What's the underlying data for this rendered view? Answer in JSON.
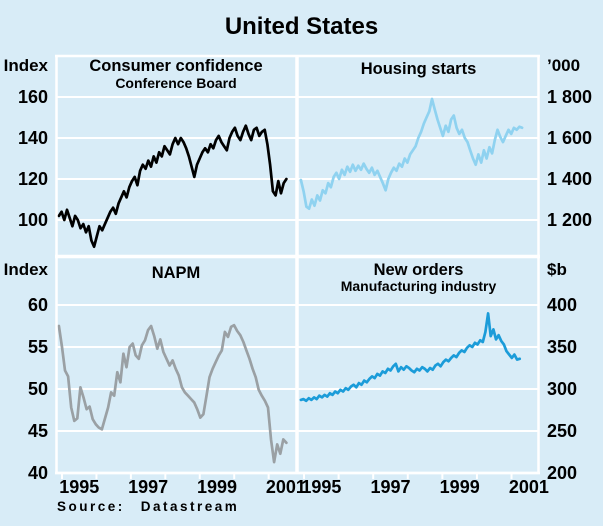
{
  "title": "United States",
  "source": {
    "label": "Source:",
    "value": "Datastream"
  },
  "x_tick_years": [
    "1995",
    "1997",
    "1999",
    "2001"
  ],
  "colors": {
    "background": "#d8ecf7",
    "grid_and_frame": "#ffffff",
    "text": "#000000"
  },
  "chart_data": [
    {
      "type": "line",
      "title": "Consumer confidence",
      "subtitle": "Conference Board",
      "unit_label": "Index",
      "axis_side": "left",
      "color": "#000000",
      "ylim": [
        83,
        180
      ],
      "x_range": [
        "late 1994",
        "early 2001"
      ],
      "x_tick_labels": [
        "1995",
        "1997",
        "1999",
        "2001"
      ],
      "yticks": [
        {
          "label": "160",
          "value": 160
        },
        {
          "label": "140",
          "value": 140
        },
        {
          "label": "120",
          "value": 120
        },
        {
          "label": "100",
          "value": 100
        }
      ],
      "values": [
        102,
        104,
        100,
        105,
        101,
        97,
        102,
        100,
        96,
        98,
        94,
        97,
        90,
        87,
        92,
        97,
        95,
        98,
        101,
        104,
        106,
        103,
        108,
        111,
        114,
        111,
        116,
        119,
        121,
        117,
        124,
        127,
        125,
        129,
        126,
        131,
        128,
        133,
        131,
        136,
        134,
        132,
        137,
        140,
        137,
        140,
        138,
        135,
        131,
        126,
        121,
        127,
        130,
        133,
        135,
        133,
        137,
        135,
        139,
        141,
        138,
        136,
        134,
        140,
        143,
        145,
        141,
        139,
        143,
        146,
        142,
        139,
        144,
        145,
        141,
        143,
        144,
        137,
        127,
        114,
        112,
        119,
        113,
        118,
        120
      ]
    },
    {
      "type": "line",
      "title": "Housing starts",
      "subtitle": "",
      "unit_label": "’000",
      "axis_side": "right",
      "color": "#8fd2f0",
      "ylim": [
        1030,
        2005
      ],
      "x_range": [
        "late 1994",
        "early 2001"
      ],
      "x_tick_labels": [
        "1995",
        "1997",
        "1999",
        "2001"
      ],
      "yticks": [
        {
          "label": "1 800",
          "value": 1800
        },
        {
          "label": "1 600",
          "value": 1600
        },
        {
          "label": "1 400",
          "value": 1400
        },
        {
          "label": "1 200",
          "value": 1200
        }
      ],
      "values": [
        1395,
        1340,
        1265,
        1255,
        1300,
        1270,
        1320,
        1295,
        1345,
        1330,
        1380,
        1360,
        1410,
        1430,
        1400,
        1445,
        1420,
        1460,
        1435,
        1470,
        1440,
        1465,
        1445,
        1475,
        1450,
        1430,
        1455,
        1420,
        1440,
        1410,
        1380,
        1345,
        1400,
        1430,
        1455,
        1440,
        1475,
        1460,
        1500,
        1480,
        1520,
        1540,
        1560,
        1600,
        1630,
        1670,
        1700,
        1730,
        1790,
        1740,
        1690,
        1650,
        1610,
        1660,
        1630,
        1690,
        1710,
        1650,
        1620,
        1640,
        1600,
        1580,
        1540,
        1500,
        1470,
        1520,
        1480,
        1540,
        1500,
        1555,
        1525,
        1590,
        1640,
        1605,
        1580,
        1610,
        1640,
        1620,
        1650,
        1640,
        1655,
        1650
      ]
    },
    {
      "type": "line",
      "title": "NAPM",
      "subtitle": "",
      "unit_label": "Index",
      "axis_side": "left",
      "color": "#9aa0a4",
      "ylim": [
        40,
        65.5
      ],
      "x_range": [
        "late 1994",
        "early 2001"
      ],
      "x_tick_labels": [
        "1995",
        "1997",
        "1999",
        "2001"
      ],
      "yticks": [
        {
          "label": "60",
          "value": 60
        },
        {
          "label": "55",
          "value": 55
        },
        {
          "label": "50",
          "value": 50
        },
        {
          "label": "45",
          "value": 45
        },
        {
          "label": "40",
          "value": 40
        }
      ],
      "values": [
        57.5,
        55.0,
        52.2,
        51.5,
        47.8,
        46.2,
        46.5,
        50.2,
        49.0,
        47.6,
        47.9,
        46.4,
        45.8,
        45.4,
        45.2,
        46.5,
        47.8,
        49.6,
        49.2,
        52.0,
        50.8,
        54.2,
        52.6,
        55.0,
        55.4,
        54.0,
        53.6,
        55.2,
        55.8,
        57.0,
        57.5,
        56.3,
        54.8,
        55.9,
        54.4,
        53.6,
        52.8,
        53.4,
        52.4,
        51.6,
        50.2,
        49.6,
        49.2,
        48.8,
        48.4,
        47.6,
        46.6,
        47.0,
        49.2,
        51.4,
        52.4,
        53.2,
        54.0,
        54.6,
        56.8,
        56.2,
        57.4,
        57.6,
        56.9,
        56.4,
        55.6,
        54.6,
        53.6,
        52.4,
        51.4,
        49.9,
        49.2,
        48.6,
        47.8,
        44.0,
        41.3,
        43.4,
        42.3,
        44.0,
        43.6
      ]
    },
    {
      "type": "line",
      "title": "New orders",
      "subtitle": "Manufacturing industry",
      "unit_label": "$b",
      "axis_side": "right",
      "color": "#1b9cd9",
      "ylim": [
        200,
        455
      ],
      "x_range": [
        "late 1994",
        "early 2001"
      ],
      "x_tick_labels": [
        "1995",
        "1997",
        "1999",
        "2001"
      ],
      "yticks": [
        {
          "label": "400",
          "value": 400
        },
        {
          "label": "350",
          "value": 350
        },
        {
          "label": "300",
          "value": 300
        },
        {
          "label": "250",
          "value": 250
        },
        {
          "label": "200",
          "value": 200
        }
      ],
      "values": [
        287,
        288,
        286,
        289,
        287,
        290,
        288,
        292,
        290,
        293,
        291,
        295,
        293,
        297,
        295,
        299,
        297,
        301,
        299,
        303,
        305,
        302,
        307,
        305,
        310,
        308,
        312,
        315,
        313,
        318,
        316,
        321,
        319,
        324,
        322,
        327,
        330,
        321,
        326,
        323,
        327,
        325,
        322,
        320,
        324,
        322,
        326,
        324,
        321,
        325,
        323,
        328,
        330,
        327,
        332,
        335,
        333,
        337,
        340,
        338,
        343,
        346,
        344,
        349,
        352,
        350,
        355,
        353,
        358,
        356,
        368,
        390,
        363,
        371,
        359,
        364,
        357,
        353,
        345,
        341,
        337,
        341,
        335,
        336
      ]
    }
  ]
}
